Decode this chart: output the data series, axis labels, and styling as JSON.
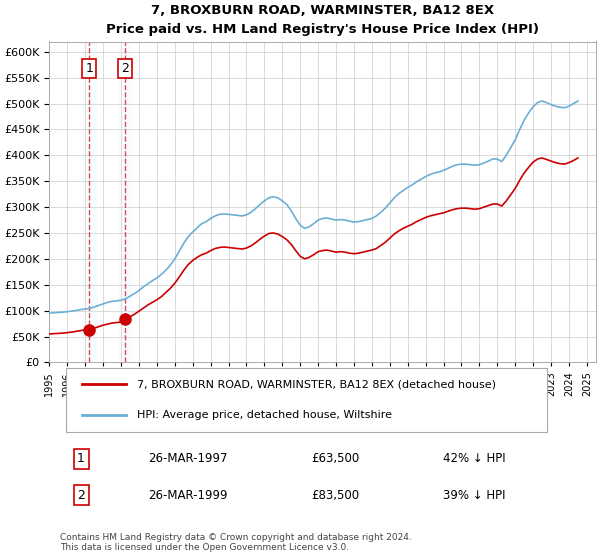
{
  "title": "7, BROXBURN ROAD, WARMINSTER, BA12 8EX",
  "subtitle": "Price paid vs. HM Land Registry's House Price Index (HPI)",
  "legend_line1": "7, BROXBURN ROAD, WARMINSTER, BA12 8EX (detached house)",
  "legend_line2": "HPI: Average price, detached house, Wiltshire",
  "footnote": "Contains HM Land Registry data © Crown copyright and database right 2024.\nThis data is licensed under the Open Government Licence v3.0.",
  "sale1_label": "1",
  "sale1_date": "26-MAR-1997",
  "sale1_price": "£63,500",
  "sale1_hpi": "42% ↓ HPI",
  "sale1_year": 1997.23,
  "sale1_value": 63500,
  "sale2_label": "2",
  "sale2_date": "26-MAR-1999",
  "sale2_price": "£83,500",
  "sale2_hpi": "39% ↓ HPI",
  "sale2_year": 1999.23,
  "sale2_value": 83500,
  "hpi_color": "#6baed6",
  "price_color": "#cc0000",
  "highlight_color": "#ddeeff",
  "ylim_min": 0,
  "ylim_max": 620000,
  "hpi_data": {
    "years": [
      1995.0,
      1995.25,
      1995.5,
      1995.75,
      1996.0,
      1996.25,
      1996.5,
      1996.75,
      1997.0,
      1997.25,
      1997.5,
      1997.75,
      1998.0,
      1998.25,
      1998.5,
      1998.75,
      1999.0,
      1999.25,
      1999.5,
      1999.75,
      2000.0,
      2000.25,
      2000.5,
      2000.75,
      2001.0,
      2001.25,
      2001.5,
      2001.75,
      2002.0,
      2002.25,
      2002.5,
      2002.75,
      2003.0,
      2003.25,
      2003.5,
      2003.75,
      2004.0,
      2004.25,
      2004.5,
      2004.75,
      2005.0,
      2005.25,
      2005.5,
      2005.75,
      2006.0,
      2006.25,
      2006.5,
      2006.75,
      2007.0,
      2007.25,
      2007.5,
      2007.75,
      2008.0,
      2008.25,
      2008.5,
      2008.75,
      2009.0,
      2009.25,
      2009.5,
      2009.75,
      2010.0,
      2010.25,
      2010.5,
      2010.75,
      2011.0,
      2011.25,
      2011.5,
      2011.75,
      2012.0,
      2012.25,
      2012.5,
      2012.75,
      2013.0,
      2013.25,
      2013.5,
      2013.75,
      2014.0,
      2014.25,
      2014.5,
      2014.75,
      2015.0,
      2015.25,
      2015.5,
      2015.75,
      2016.0,
      2016.25,
      2016.5,
      2016.75,
      2017.0,
      2017.25,
      2017.5,
      2017.75,
      2018.0,
      2018.25,
      2018.5,
      2018.75,
      2019.0,
      2019.25,
      2019.5,
      2019.75,
      2020.0,
      2020.25,
      2020.5,
      2020.75,
      2021.0,
      2021.25,
      2021.5,
      2021.75,
      2022.0,
      2022.25,
      2022.5,
      2022.75,
      2023.0,
      2023.25,
      2023.5,
      2023.75,
      2024.0,
      2024.25,
      2024.5
    ],
    "values": [
      95000,
      96000,
      96500,
      97000,
      98000,
      99000,
      100500,
      102000,
      103000,
      104500,
      107000,
      110000,
      113000,
      116000,
      118000,
      119000,
      120000,
      123000,
      128000,
      133000,
      139000,
      146000,
      152000,
      158000,
      163000,
      170000,
      178000,
      188000,
      200000,
      215000,
      230000,
      243000,
      252000,
      260000,
      268000,
      272000,
      278000,
      283000,
      286000,
      287000,
      286000,
      285000,
      284000,
      283000,
      285000,
      290000,
      297000,
      305000,
      312000,
      318000,
      320000,
      318000,
      312000,
      305000,
      293000,
      278000,
      265000,
      259000,
      262000,
      268000,
      275000,
      278000,
      279000,
      277000,
      275000,
      276000,
      275000,
      273000,
      271000,
      272000,
      274000,
      276000,
      278000,
      283000,
      290000,
      298000,
      308000,
      318000,
      326000,
      332000,
      338000,
      343000,
      349000,
      354000,
      359000,
      363000,
      366000,
      368000,
      371000,
      375000,
      379000,
      382000,
      383000,
      383000,
      382000,
      381000,
      382000,
      385000,
      389000,
      393000,
      393000,
      388000,
      400000,
      415000,
      430000,
      450000,
      468000,
      482000,
      494000,
      502000,
      505000,
      502000,
      498000,
      495000,
      493000,
      492000,
      495000,
      500000,
      505000
    ]
  },
  "price_data": {
    "years": [
      1995.0,
      1995.25,
      1995.5,
      1995.75,
      1996.0,
      1996.25,
      1996.5,
      1996.75,
      1997.0,
      1997.25,
      1997.5,
      1997.75,
      1998.0,
      1998.25,
      1998.5,
      1998.75,
      1999.0,
      1999.25,
      1999.5,
      1999.75,
      2000.0,
      2000.25,
      2000.5,
      2000.75,
      2001.0,
      2001.25,
      2001.5,
      2001.75,
      2002.0,
      2002.25,
      2002.5,
      2002.75,
      2003.0,
      2003.25,
      2003.5,
      2003.75,
      2004.0,
      2004.25,
      2004.5,
      2004.75,
      2005.0,
      2005.25,
      2005.5,
      2005.75,
      2006.0,
      2006.25,
      2006.5,
      2006.75,
      2007.0,
      2007.25,
      2007.5,
      2007.75,
      2008.0,
      2008.25,
      2008.5,
      2008.75,
      2009.0,
      2009.25,
      2009.5,
      2009.75,
      2010.0,
      2010.25,
      2010.5,
      2010.75,
      2011.0,
      2011.25,
      2011.5,
      2011.75,
      2012.0,
      2012.25,
      2012.5,
      2012.75,
      2013.0,
      2013.25,
      2013.5,
      2013.75,
      2014.0,
      2014.25,
      2014.5,
      2014.75,
      2015.0,
      2015.25,
      2015.5,
      2015.75,
      2016.0,
      2016.25,
      2016.5,
      2016.75,
      2017.0,
      2017.25,
      2017.5,
      2017.75,
      2018.0,
      2018.25,
      2018.5,
      2018.75,
      2019.0,
      2019.25,
      2019.5,
      2019.75,
      2020.0,
      2020.25,
      2020.5,
      2020.75,
      2021.0,
      2021.25,
      2021.5,
      2021.75,
      2022.0,
      2022.25,
      2022.5,
      2022.75,
      2023.0,
      2023.25,
      2023.5,
      2023.75,
      2024.0,
      2024.25,
      2024.5
    ],
    "values": [
      55000,
      55500,
      56000,
      56500,
      57500,
      58500,
      60000,
      61500,
      63000,
      63500,
      66000,
      69000,
      72000,
      74000,
      76000,
      77000,
      78000,
      83500,
      88000,
      93000,
      99000,
      105000,
      111000,
      116000,
      121000,
      127000,
      135000,
      143000,
      153000,
      165000,
      178000,
      189000,
      197000,
      203000,
      208000,
      211000,
      216000,
      220000,
      222000,
      223000,
      222000,
      221000,
      220000,
      219000,
      221000,
      225000,
      231000,
      238000,
      244000,
      249000,
      250000,
      248000,
      243000,
      237000,
      228000,
      216000,
      205000,
      200000,
      203000,
      208000,
      214000,
      216000,
      217000,
      215000,
      213000,
      214000,
      213000,
      211000,
      210000,
      211000,
      213000,
      215000,
      217000,
      220000,
      226000,
      232000,
      240000,
      248000,
      254000,
      259000,
      263000,
      267000,
      272000,
      276000,
      280000,
      283000,
      285000,
      287000,
      289000,
      292000,
      295000,
      297000,
      298000,
      298000,
      297000,
      296000,
      297000,
      300000,
      303000,
      306000,
      306000,
      302000,
      312000,
      324000,
      336000,
      352000,
      366000,
      377000,
      387000,
      393000,
      395000,
      392000,
      389000,
      386000,
      384000,
      383000,
      386000,
      390000,
      395000
    ]
  }
}
